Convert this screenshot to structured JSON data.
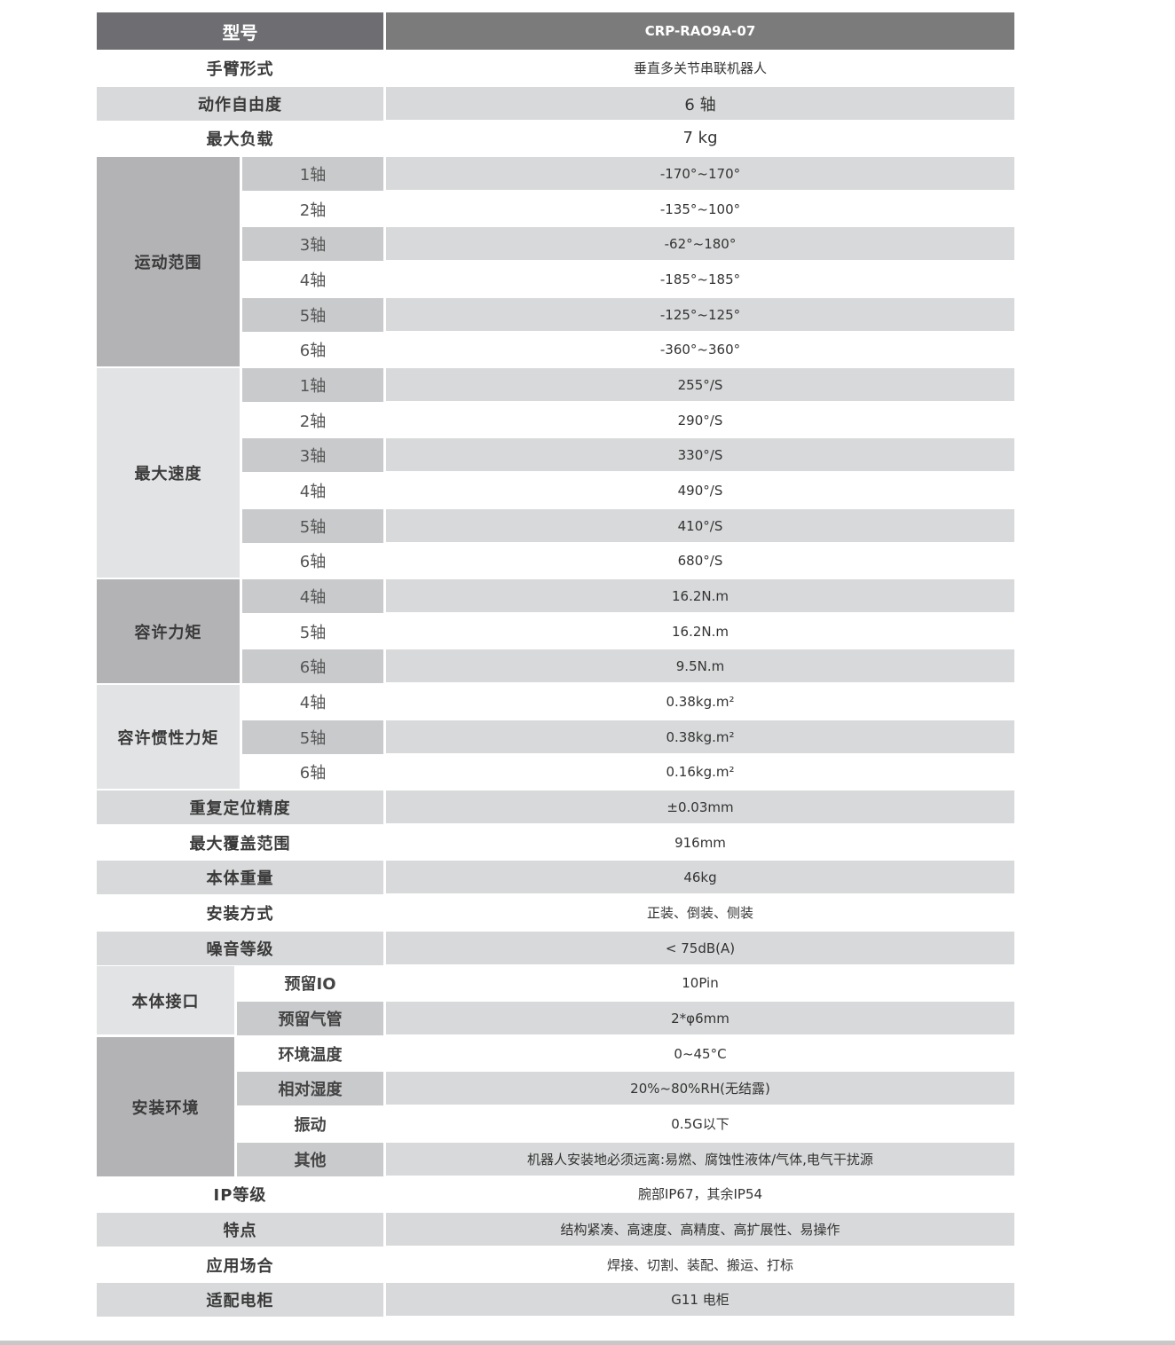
{
  "header": {
    "label": "型号",
    "model": "CRP-RAO9A-07"
  },
  "rows": [
    {
      "label": "手臂形式",
      "value": "垂直多关节串联机器人"
    },
    {
      "label": "动作自由度",
      "value": "6 轴"
    },
    {
      "label": "最大负载",
      "value": "7 kg"
    },
    {
      "group": "运动范围",
      "tone": "dark",
      "items": [
        {
          "label": "1轴",
          "value": "-170°~170°"
        },
        {
          "label": "2轴",
          "value": "-135°~100°"
        },
        {
          "label": "3轴",
          "value": "-62°~180°"
        },
        {
          "label": "4轴",
          "value": "-185°~185°"
        },
        {
          "label": "5轴",
          "value": "-125°~125°"
        },
        {
          "label": "6轴",
          "value": "-360°~360°"
        }
      ]
    },
    {
      "group": "最大速度",
      "tone": "light",
      "items": [
        {
          "label": "1轴",
          "value": "255°/S"
        },
        {
          "label": "2轴",
          "value": "290°/S"
        },
        {
          "label": "3轴",
          "value": "330°/S"
        },
        {
          "label": "4轴",
          "value": "490°/S"
        },
        {
          "label": "5轴",
          "value": "410°/S"
        },
        {
          "label": "6轴",
          "value": "680°/S"
        }
      ]
    },
    {
      "group": "容许力矩",
      "tone": "dark",
      "items": [
        {
          "label": "4轴",
          "value": "16.2N.m"
        },
        {
          "label": "5轴",
          "value": "16.2N.m"
        },
        {
          "label": "6轴",
          "value": "9.5N.m"
        }
      ]
    },
    {
      "group": "容许惯性力矩",
      "tone": "light",
      "items": [
        {
          "label": "4轴",
          "value": "0.38kg.m²"
        },
        {
          "label": "5轴",
          "value": "0.38kg.m²"
        },
        {
          "label": "6轴",
          "value": "0.16kg.m²"
        }
      ]
    },
    {
      "label": "重复定位精度",
      "value": "±0.03mm"
    },
    {
      "label": "最大覆盖范围",
      "value": "916mm"
    },
    {
      "label": "本体重量",
      "value": "46kg"
    },
    {
      "label": "安装方式",
      "value": "正装、倒装、侧装"
    },
    {
      "label": "噪音等级",
      "value": "< 75dB(A)"
    },
    {
      "group": "本体接口",
      "tone": "light",
      "narrow": true,
      "items": [
        {
          "label": "预留IO",
          "value": "10Pin"
        },
        {
          "label": "预留气管",
          "value": "2*φ6mm"
        }
      ]
    },
    {
      "group": "安装环境",
      "tone": "dark",
      "narrow": true,
      "items": [
        {
          "label": "环境温度",
          "value": "0~45°C"
        },
        {
          "label": "相对湿度",
          "value": "20%~80%RH(无结露)"
        },
        {
          "label": "振动",
          "value": "0.5G以下"
        },
        {
          "label": "其他",
          "value": "机器人安装地必须远离:易燃、腐蚀性液体/气体,电气干扰源"
        }
      ]
    },
    {
      "label": "IP等级",
      "value": "腕部IP67，其余IP54"
    },
    {
      "label": "特点",
      "value": "结构紧凑、高速度、高精度、高扩展性、易操作"
    },
    {
      "label": "应用场合",
      "value": "焊接、切割、装配、搬运、打标"
    },
    {
      "label": "适配电柜",
      "value": "G11  电柜"
    }
  ]
}
